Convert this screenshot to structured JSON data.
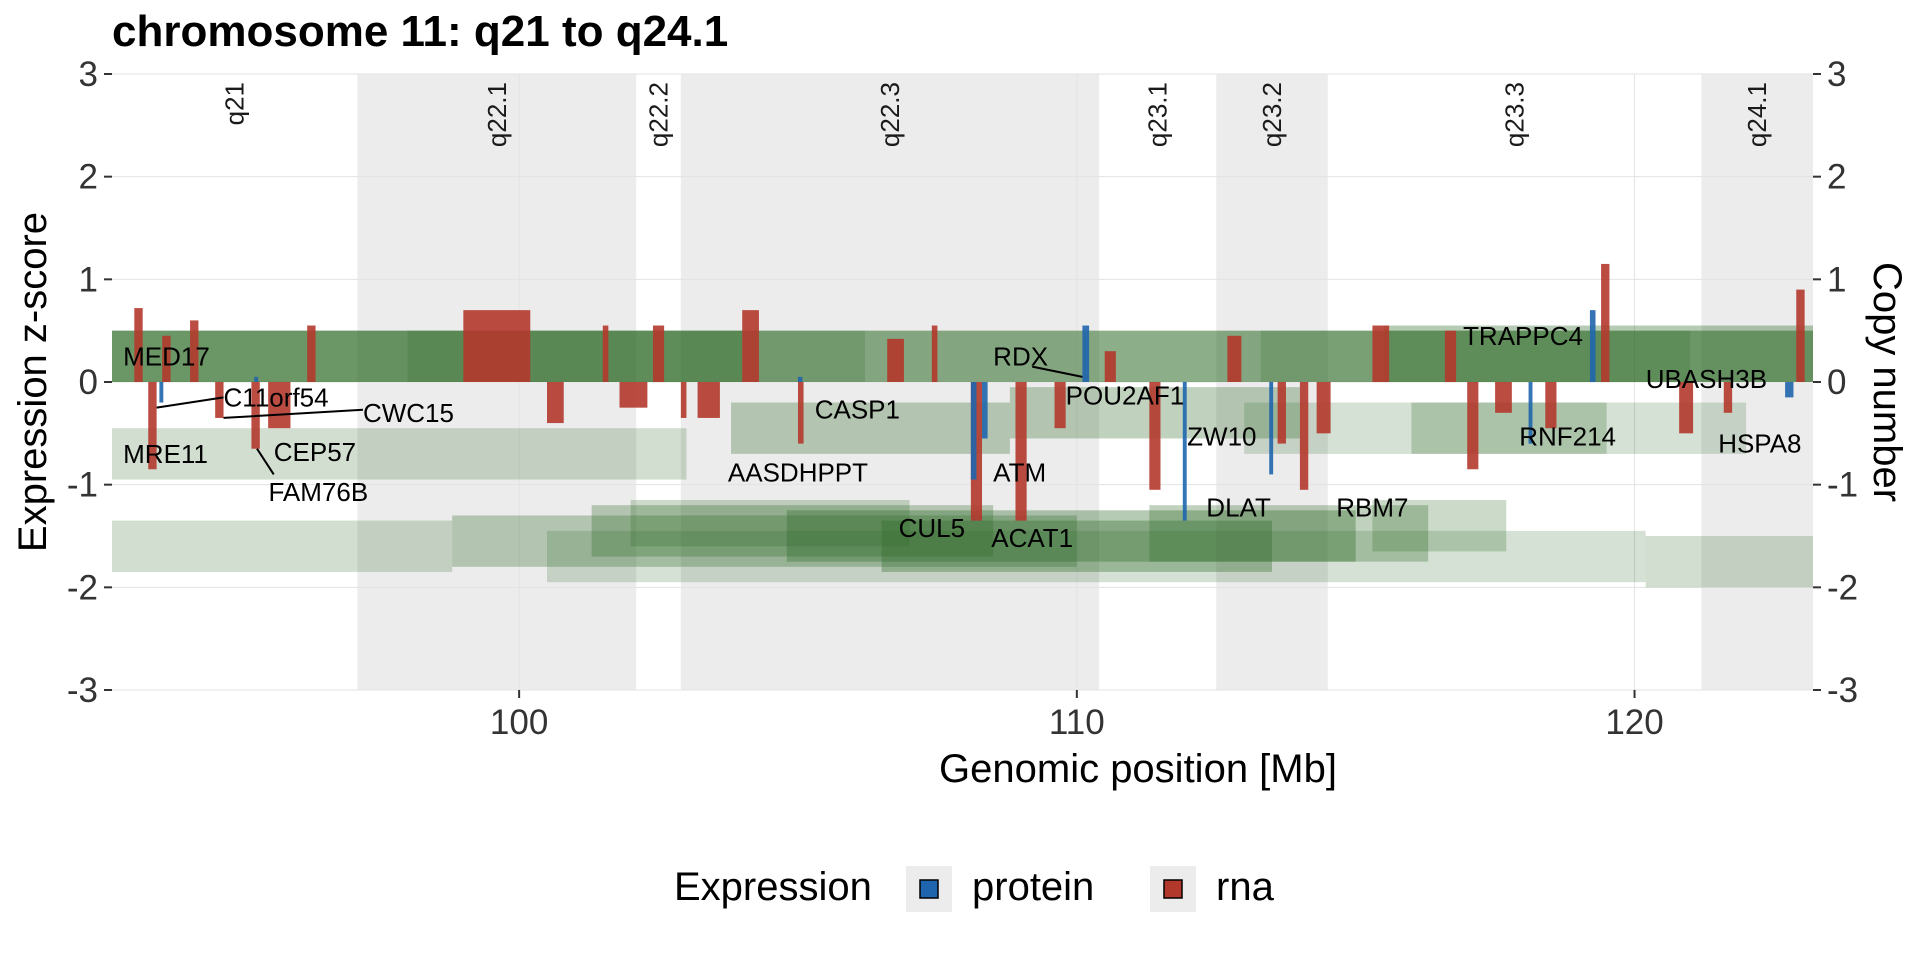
{
  "chart_data": {
    "type": "genome-track",
    "title": "chromosome 11: q21 to q24.1",
    "xlabel": "Genomic position [Mb]",
    "ylabel": "Expression z-score",
    "y2label": "Copy number",
    "xlim": [
      92.7,
      123.2
    ],
    "ylim": [
      -3,
      3
    ],
    "x_ticks": [
      100,
      110,
      120
    ],
    "y_ticks": [
      -3,
      -2,
      -1,
      0,
      1,
      2,
      3
    ],
    "y2_ticks": [
      -3,
      -2,
      -1,
      0,
      1,
      2,
      3
    ],
    "grid": true,
    "legend_placement": "bottom",
    "legend": {
      "title": "Expression",
      "items": [
        {
          "label": "protein",
          "color": "#1f65ad"
        },
        {
          "label": "rna",
          "color": "#b3382c"
        }
      ]
    },
    "colors": {
      "protein": "#1f65ad",
      "rna": "#b3382c",
      "copy_number": "#2e6b27",
      "band_shade": "#ececec"
    },
    "cytobands": [
      {
        "name": "q21",
        "start": 92.7,
        "end": 97.1,
        "shaded": false
      },
      {
        "name": "q22.1",
        "start": 97.1,
        "end": 102.1,
        "shaded": true
      },
      {
        "name": "q22.2",
        "start": 102.1,
        "end": 102.9,
        "shaded": false
      },
      {
        "name": "q22.3",
        "start": 102.9,
        "end": 110.4,
        "shaded": true
      },
      {
        "name": "q23.1",
        "start": 110.4,
        "end": 112.5,
        "shaded": false
      },
      {
        "name": "q23.2",
        "start": 112.5,
        "end": 114.5,
        "shaded": true
      },
      {
        "name": "q23.3",
        "start": 114.5,
        "end": 121.2,
        "shaded": false
      },
      {
        "name": "q24.1",
        "start": 121.2,
        "end": 123.2,
        "shaded": true
      }
    ],
    "copy_number_segments": [
      {
        "start": 92.7,
        "end": 123.2,
        "y0": 0.0,
        "y1": 0.5,
        "opacity": 0.55
      },
      {
        "start": 92.7,
        "end": 104.0,
        "y0": 0.0,
        "y1": 0.5,
        "opacity": 0.35
      },
      {
        "start": 98.0,
        "end": 106.2,
        "y0": 0.0,
        "y1": 0.5,
        "opacity": 0.2
      },
      {
        "start": 115.5,
        "end": 123.2,
        "y0": 0.0,
        "y1": 0.55,
        "opacity": 0.35
      },
      {
        "start": 113.3,
        "end": 121.0,
        "y0": 0.0,
        "y1": 0.5,
        "opacity": 0.2
      },
      {
        "start": 92.7,
        "end": 103.0,
        "y0": -0.95,
        "y1": -0.45,
        "opacity": 0.22
      },
      {
        "start": 103.8,
        "end": 108.8,
        "y0": -0.7,
        "y1": -0.2,
        "opacity": 0.3
      },
      {
        "start": 108.8,
        "end": 114.0,
        "y0": -0.55,
        "y1": -0.05,
        "opacity": 0.3
      },
      {
        "start": 113.0,
        "end": 122.0,
        "y0": -0.7,
        "y1": -0.2,
        "opacity": 0.2
      },
      {
        "start": 116.0,
        "end": 119.5,
        "y0": -0.7,
        "y1": -0.2,
        "opacity": 0.25
      },
      {
        "start": 92.7,
        "end": 98.8,
        "y0": -1.85,
        "y1": -1.35,
        "opacity": 0.22
      },
      {
        "start": 98.8,
        "end": 110.0,
        "y0": -1.8,
        "y1": -1.3,
        "opacity": 0.3
      },
      {
        "start": 101.3,
        "end": 108.5,
        "y0": -1.7,
        "y1": -1.2,
        "opacity": 0.3
      },
      {
        "start": 102.0,
        "end": 107.0,
        "y0": -1.6,
        "y1": -1.15,
        "opacity": 0.25
      },
      {
        "start": 104.8,
        "end": 115.0,
        "y0": -1.75,
        "y1": -1.25,
        "opacity": 0.35
      },
      {
        "start": 106.5,
        "end": 113.5,
        "y0": -1.85,
        "y1": -1.35,
        "opacity": 0.35
      },
      {
        "start": 111.3,
        "end": 116.3,
        "y0": -1.75,
        "y1": -1.2,
        "opacity": 0.3
      },
      {
        "start": 115.3,
        "end": 117.7,
        "y0": -1.65,
        "y1": -1.15,
        "opacity": 0.25
      },
      {
        "start": 100.5,
        "end": 120.2,
        "y0": -1.95,
        "y1": -1.45,
        "opacity": 0.2
      },
      {
        "start": 120.2,
        "end": 123.2,
        "y0": -2.0,
        "y1": -1.5,
        "opacity": 0.22
      }
    ],
    "rna_bars": [
      {
        "start": 93.1,
        "end": 93.25,
        "value": 0.72
      },
      {
        "start": 93.35,
        "end": 93.5,
        "value": -0.85
      },
      {
        "start": 93.6,
        "end": 93.75,
        "value": 0.45
      },
      {
        "start": 94.1,
        "end": 94.25,
        "value": 0.6
      },
      {
        "start": 94.55,
        "end": 94.7,
        "value": -0.35
      },
      {
        "start": 95.2,
        "end": 95.35,
        "value": -0.65
      },
      {
        "start": 95.5,
        "end": 95.9,
        "value": -0.45
      },
      {
        "start": 96.2,
        "end": 96.35,
        "value": 0.55
      },
      {
        "start": 99.0,
        "end": 100.2,
        "value": 0.7
      },
      {
        "start": 100.5,
        "end": 100.8,
        "value": -0.4
      },
      {
        "start": 101.5,
        "end": 101.6,
        "value": 0.55
      },
      {
        "start": 101.8,
        "end": 102.3,
        "value": -0.25
      },
      {
        "start": 102.4,
        "end": 102.6,
        "value": 0.55
      },
      {
        "start": 102.9,
        "end": 103.0,
        "value": -0.35
      },
      {
        "start": 103.2,
        "end": 103.6,
        "value": -0.35
      },
      {
        "start": 104.0,
        "end": 104.3,
        "value": 0.7
      },
      {
        "start": 105.0,
        "end": 105.1,
        "value": -0.6
      },
      {
        "start": 106.6,
        "end": 106.9,
        "value": 0.42
      },
      {
        "start": 107.4,
        "end": 107.5,
        "value": 0.55
      },
      {
        "start": 108.1,
        "end": 108.3,
        "value": -1.35
      },
      {
        "start": 108.9,
        "end": 109.1,
        "value": -1.35
      },
      {
        "start": 109.6,
        "end": 109.8,
        "value": -0.45
      },
      {
        "start": 110.5,
        "end": 110.7,
        "value": 0.3
      },
      {
        "start": 111.3,
        "end": 111.5,
        "value": -1.05
      },
      {
        "start": 112.7,
        "end": 112.95,
        "value": 0.45
      },
      {
        "start": 113.6,
        "end": 113.75,
        "value": -0.6
      },
      {
        "start": 114.0,
        "end": 114.15,
        "value": -1.05
      },
      {
        "start": 114.3,
        "end": 114.55,
        "value": -0.5
      },
      {
        "start": 115.3,
        "end": 115.6,
        "value": 0.55
      },
      {
        "start": 116.6,
        "end": 116.8,
        "value": 0.5
      },
      {
        "start": 117.0,
        "end": 117.2,
        "value": -0.85
      },
      {
        "start": 117.5,
        "end": 117.8,
        "value": -0.3
      },
      {
        "start": 118.4,
        "end": 118.6,
        "value": -0.45
      },
      {
        "start": 119.4,
        "end": 119.55,
        "value": 1.15
      },
      {
        "start": 120.8,
        "end": 121.05,
        "value": -0.5
      },
      {
        "start": 121.6,
        "end": 121.75,
        "value": -0.3
      },
      {
        "start": 122.9,
        "end": 123.05,
        "value": 0.9
      }
    ],
    "protein_bars": [
      {
        "start": 93.55,
        "end": 93.62,
        "value": -0.2
      },
      {
        "start": 95.25,
        "end": 95.32,
        "value": 0.05
      },
      {
        "start": 105.0,
        "end": 105.08,
        "value": 0.05
      },
      {
        "start": 108.1,
        "end": 108.2,
        "value": -0.95
      },
      {
        "start": 108.3,
        "end": 108.4,
        "value": -0.55
      },
      {
        "start": 110.1,
        "end": 110.22,
        "value": 0.55
      },
      {
        "start": 111.9,
        "end": 111.97,
        "value": -1.35
      },
      {
        "start": 113.45,
        "end": 113.52,
        "value": -0.9
      },
      {
        "start": 118.1,
        "end": 118.17,
        "value": -0.6
      },
      {
        "start": 119.2,
        "end": 119.3,
        "value": 0.7
      },
      {
        "start": 122.7,
        "end": 122.85,
        "value": -0.15
      }
    ],
    "gene_labels": [
      {
        "gene": "MED17",
        "x": 92.9,
        "y": 0.25,
        "anchor": "start"
      },
      {
        "gene": "C11orf54",
        "x": 94.7,
        "y": -0.15,
        "anchor": "start"
      },
      {
        "gene": "CWC15",
        "x": 97.2,
        "y": -0.3,
        "anchor": "start"
      },
      {
        "gene": "MRE11",
        "x": 92.9,
        "y": -0.7,
        "anchor": "start"
      },
      {
        "gene": "CEP57",
        "x": 95.6,
        "y": -0.68,
        "anchor": "start"
      },
      {
        "gene": "FAM76B",
        "x": 96.4,
        "y": -1.07,
        "anchor": "middle"
      },
      {
        "gene": "CASP1",
        "x": 105.3,
        "y": -0.27,
        "anchor": "start"
      },
      {
        "gene": "AASDHPPT",
        "x": 105.0,
        "y": -0.88,
        "anchor": "middle"
      },
      {
        "gene": "CUL5",
        "x": 107.4,
        "y": -1.42,
        "anchor": "middle"
      },
      {
        "gene": "ATM",
        "x": 108.5,
        "y": -0.88,
        "anchor": "start"
      },
      {
        "gene": "ACAT1",
        "x": 109.2,
        "y": -1.52,
        "anchor": "middle"
      },
      {
        "gene": "RDX",
        "x": 108.5,
        "y": 0.25,
        "anchor": "start"
      },
      {
        "gene": "POU2AF1",
        "x": 109.8,
        "y": -0.13,
        "anchor": "start"
      },
      {
        "gene": "ZW10",
        "x": 112.6,
        "y": -0.53,
        "anchor": "middle"
      },
      {
        "gene": "DLAT",
        "x": 112.9,
        "y": -1.22,
        "anchor": "middle"
      },
      {
        "gene": "RBM7",
        "x": 115.3,
        "y": -1.22,
        "anchor": "middle"
      },
      {
        "gene": "TRAPPC4",
        "x": 118.0,
        "y": 0.45,
        "anchor": "middle"
      },
      {
        "gene": "RNF214",
        "x": 118.8,
        "y": -0.53,
        "anchor": "middle"
      },
      {
        "gene": "UBASH3B",
        "x": 120.2,
        "y": 0.03,
        "anchor": "start"
      },
      {
        "gene": "HSPA8",
        "x": 121.5,
        "y": -0.6,
        "anchor": "start"
      }
    ],
    "label_leaders": [
      {
        "x1": 93.5,
        "y1": -0.25,
        "x2": 94.7,
        "y2": -0.15
      },
      {
        "x1": 94.7,
        "y1": -0.35,
        "x2": 97.2,
        "y2": -0.27
      },
      {
        "x1": 95.3,
        "y1": -0.65,
        "x2": 95.6,
        "y2": -0.9
      },
      {
        "x1": 109.2,
        "y1": 0.15,
        "x2": 110.1,
        "y2": 0.05
      }
    ]
  }
}
